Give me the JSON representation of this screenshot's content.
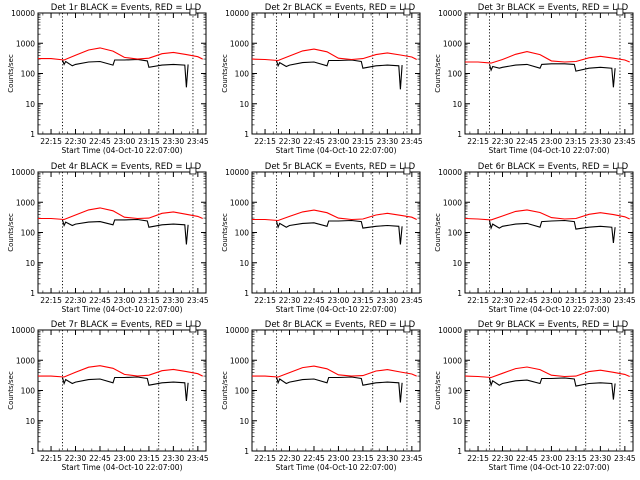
{
  "chart_data": [
    {
      "type": "line",
      "title": "Det 1r BLACK = Events, RED = LLD",
      "xlabel": "Start Time (04-Oct-10 22:07:00)",
      "ylabel": "Counts/sec",
      "yscale": "log",
      "ylim": [
        1,
        10000
      ],
      "ytick_labels": [
        "1",
        "10",
        "100",
        "1000",
        "10000"
      ],
      "xlim": [
        "22:07",
        "23:50"
      ],
      "xtick_labels": [
        "22:15",
        "22:30",
        "22:45",
        "23:00",
        "23:15",
        "23:30",
        "23:45"
      ],
      "vlines": [
        "22:22",
        "23:21",
        "23:42"
      ],
      "series": [
        {
          "name": "LLD",
          "color": "#ff0000",
          "x": [
            "22:07",
            "22:15",
            "22:23",
            "22:30",
            "22:38",
            "22:45",
            "22:53",
            "23:00",
            "23:08",
            "23:15",
            "23:23",
            "23:30",
            "23:38",
            "23:45",
            "23:48"
          ],
          "values": [
            310,
            310,
            280,
            400,
            600,
            700,
            550,
            340,
            300,
            320,
            450,
            500,
            420,
            360,
            300
          ]
        },
        {
          "name": "Events",
          "color": "#000000",
          "x": [
            "22:22",
            "22:23",
            "22:24",
            "22:28",
            "22:30",
            "22:38",
            "22:45",
            "22:53",
            "22:54",
            "23:00",
            "23:08",
            "23:14",
            "23:15",
            "23:23",
            "23:30",
            "23:37",
            "23:38",
            "23:39"
          ],
          "values": [
            280,
            200,
            250,
            180,
            200,
            240,
            250,
            190,
            280,
            280,
            290,
            260,
            160,
            190,
            200,
            190,
            35,
            200
          ]
        }
      ]
    },
    {
      "type": "line",
      "title": "Det 2r BLACK = Events, RED = LLD",
      "xlabel": "Start Time (04-Oct-10 22:07:00)",
      "ylabel": "Counts/sec",
      "yscale": "log",
      "ylim": [
        1,
        10000
      ],
      "ytick_labels": [
        "1",
        "10",
        "100",
        "1000",
        "10000"
      ],
      "xlim": [
        "22:07",
        "23:50"
      ],
      "xtick_labels": [
        "22:15",
        "22:30",
        "22:45",
        "23:00",
        "23:15",
        "23:30",
        "23:45"
      ],
      "vlines": [
        "22:22",
        "23:21",
        "23:42"
      ],
      "series": [
        {
          "name": "LLD",
          "color": "#ff0000",
          "x": [
            "22:07",
            "22:15",
            "22:23",
            "22:30",
            "22:38",
            "22:45",
            "22:53",
            "23:00",
            "23:08",
            "23:15",
            "23:23",
            "23:30",
            "23:38",
            "23:45",
            "23:48"
          ],
          "values": [
            300,
            290,
            270,
            380,
            560,
            640,
            520,
            320,
            290,
            310,
            420,
            480,
            410,
            350,
            290
          ]
        },
        {
          "name": "Events",
          "color": "#000000",
          "x": [
            "22:22",
            "22:23",
            "22:24",
            "22:28",
            "22:30",
            "22:38",
            "22:45",
            "22:53",
            "22:54",
            "23:00",
            "23:08",
            "23:14",
            "23:15",
            "23:23",
            "23:30",
            "23:37",
            "23:38",
            "23:39"
          ],
          "values": [
            270,
            180,
            230,
            170,
            190,
            230,
            240,
            180,
            270,
            270,
            280,
            250,
            150,
            180,
            190,
            180,
            30,
            190
          ]
        }
      ]
    },
    {
      "type": "line",
      "title": "Det 3r BLACK = Events, RED = LLD",
      "xlabel": "Start Time (04-Oct-10 22:07:00)",
      "ylabel": "Counts/sec",
      "yscale": "log",
      "ylim": [
        1,
        10000
      ],
      "ytick_labels": [
        "1",
        "10",
        "100",
        "1000",
        "10000"
      ],
      "xlim": [
        "22:07",
        "23:50"
      ],
      "xtick_labels": [
        "22:15",
        "22:30",
        "22:45",
        "23:00",
        "23:15",
        "23:30",
        "23:45"
      ],
      "vlines": [
        "22:22",
        "23:21",
        "23:42"
      ],
      "series": [
        {
          "name": "LLD",
          "color": "#ff0000",
          "x": [
            "22:07",
            "22:15",
            "22:23",
            "22:30",
            "22:38",
            "22:45",
            "22:53",
            "23:00",
            "23:08",
            "23:15",
            "23:23",
            "23:30",
            "23:38",
            "23:45",
            "23:48"
          ],
          "values": [
            240,
            240,
            220,
            290,
            430,
            530,
            420,
            260,
            240,
            250,
            330,
            370,
            320,
            280,
            240
          ]
        },
        {
          "name": "Events",
          "color": "#000000",
          "x": [
            "22:22",
            "22:23",
            "22:24",
            "22:28",
            "22:30",
            "22:38",
            "22:45",
            "22:53",
            "22:54",
            "23:00",
            "23:08",
            "23:14",
            "23:15",
            "23:23",
            "23:30",
            "23:37",
            "23:38",
            "23:39"
          ],
          "values": [
            200,
            130,
            170,
            150,
            160,
            190,
            200,
            150,
            200,
            210,
            210,
            200,
            120,
            150,
            160,
            150,
            35,
            150
          ]
        }
      ]
    },
    {
      "type": "line",
      "title": "Det 4r BLACK = Events, RED = LLD",
      "xlabel": "Start Time (04-Oct-10 22:07:00)",
      "ylabel": "Counts/sec",
      "yscale": "log",
      "ylim": [
        1,
        10000
      ],
      "ytick_labels": [
        "1",
        "10",
        "100",
        "1000",
        "10000"
      ],
      "xlim": [
        "22:07",
        "23:50"
      ],
      "xtick_labels": [
        "22:15",
        "22:30",
        "22:45",
        "23:00",
        "23:15",
        "23:30",
        "23:45"
      ],
      "vlines": [
        "22:22",
        "23:21",
        "23:42"
      ],
      "series": [
        {
          "name": "LLD",
          "color": "#ff0000",
          "x": [
            "22:07",
            "22:15",
            "22:23",
            "22:30",
            "22:38",
            "22:45",
            "22:53",
            "23:00",
            "23:08",
            "23:15",
            "23:23",
            "23:30",
            "23:38",
            "23:45",
            "23:48"
          ],
          "values": [
            290,
            290,
            270,
            380,
            560,
            650,
            520,
            320,
            290,
            300,
            430,
            480,
            400,
            340,
            290
          ]
        },
        {
          "name": "Events",
          "color": "#000000",
          "x": [
            "22:22",
            "22:23",
            "22:24",
            "22:28",
            "22:30",
            "22:38",
            "22:45",
            "22:53",
            "22:54",
            "23:00",
            "23:08",
            "23:14",
            "23:15",
            "23:23",
            "23:30",
            "23:37",
            "23:38",
            "23:39"
          ],
          "values": [
            260,
            170,
            220,
            170,
            190,
            220,
            230,
            180,
            260,
            260,
            270,
            240,
            150,
            180,
            190,
            180,
            40,
            180
          ]
        }
      ]
    },
    {
      "type": "line",
      "title": "Det 5r BLACK = Events, RED = LLD",
      "xlabel": "Start Time (04-Oct-10 22:07:00)",
      "ylabel": "Counts/sec",
      "yscale": "log",
      "ylim": [
        1,
        10000
      ],
      "ytick_labels": [
        "1",
        "10",
        "100",
        "1000",
        "10000"
      ],
      "xlim": [
        "22:07",
        "23:50"
      ],
      "xtick_labels": [
        "22:15",
        "22:30",
        "22:45",
        "23:00",
        "23:15",
        "23:30",
        "23:45"
      ],
      "vlines": [
        "22:22",
        "23:21",
        "23:42"
      ],
      "series": [
        {
          "name": "LLD",
          "color": "#ff0000",
          "x": [
            "22:07",
            "22:15",
            "22:23",
            "22:30",
            "22:38",
            "22:45",
            "22:53",
            "23:00",
            "23:08",
            "23:15",
            "23:23",
            "23:30",
            "23:38",
            "23:45",
            "23:48"
          ],
          "values": [
            270,
            270,
            250,
            340,
            480,
            550,
            450,
            300,
            270,
            280,
            380,
            430,
            370,
            320,
            270
          ]
        },
        {
          "name": "Events",
          "color": "#000000",
          "x": [
            "22:22",
            "22:23",
            "22:24",
            "22:28",
            "22:30",
            "22:38",
            "22:45",
            "22:53",
            "22:54",
            "23:00",
            "23:08",
            "23:14",
            "23:15",
            "23:23",
            "23:30",
            "23:37",
            "23:38",
            "23:39"
          ],
          "values": [
            240,
            150,
            200,
            150,
            170,
            200,
            210,
            160,
            240,
            240,
            250,
            230,
            140,
            160,
            170,
            160,
            40,
            160
          ]
        }
      ]
    },
    {
      "type": "line",
      "title": "Det 6r BLACK = Events, RED = LLD",
      "xlabel": "Start Time (04-Oct-10 22:07:00)",
      "ylabel": "Counts/sec",
      "yscale": "log",
      "ylim": [
        1,
        10000
      ],
      "ytick_labels": [
        "1",
        "10",
        "100",
        "1000",
        "10000"
      ],
      "xlim": [
        "22:07",
        "23:50"
      ],
      "xtick_labels": [
        "22:15",
        "22:30",
        "22:45",
        "23:00",
        "23:15",
        "23:30",
        "23:45"
      ],
      "vlines": [
        "22:22",
        "23:21",
        "23:42"
      ],
      "series": [
        {
          "name": "LLD",
          "color": "#ff0000",
          "x": [
            "22:07",
            "22:15",
            "22:23",
            "22:30",
            "22:38",
            "22:45",
            "22:53",
            "23:00",
            "23:08",
            "23:15",
            "23:23",
            "23:30",
            "23:38",
            "23:45",
            "23:48"
          ],
          "values": [
            290,
            280,
            260,
            350,
            500,
            560,
            460,
            310,
            280,
            290,
            400,
            450,
            390,
            330,
            280
          ]
        },
        {
          "name": "Events",
          "color": "#000000",
          "x": [
            "22:22",
            "22:23",
            "22:24",
            "22:28",
            "22:30",
            "22:38",
            "22:45",
            "22:53",
            "22:54",
            "23:00",
            "23:08",
            "23:14",
            "23:15",
            "23:23",
            "23:30",
            "23:37",
            "23:38",
            "23:39"
          ],
          "values": [
            250,
            140,
            190,
            140,
            160,
            190,
            200,
            150,
            230,
            240,
            250,
            230,
            130,
            150,
            160,
            150,
            45,
            150
          ]
        }
      ]
    },
    {
      "type": "line",
      "title": "Det 7r BLACK = Events, RED = LLD",
      "xlabel": "Start Time (04-Oct-10 22:07:00)",
      "ylabel": "Counts/sec",
      "yscale": "log",
      "ylim": [
        1,
        10000
      ],
      "ytick_labels": [
        "1",
        "10",
        "100",
        "1000",
        "10000"
      ],
      "xlim": [
        "22:07",
        "23:50"
      ],
      "xtick_labels": [
        "22:15",
        "22:30",
        "22:45",
        "23:00",
        "23:15",
        "23:30",
        "23:45"
      ],
      "vlines": [
        "22:22",
        "23:21",
        "23:42"
      ],
      "series": [
        {
          "name": "LLD",
          "color": "#ff0000",
          "x": [
            "22:07",
            "22:15",
            "22:23",
            "22:30",
            "22:38",
            "22:45",
            "22:53",
            "23:00",
            "23:08",
            "23:15",
            "23:23",
            "23:30",
            "23:38",
            "23:45",
            "23:48"
          ],
          "values": [
            300,
            300,
            280,
            400,
            590,
            660,
            540,
            340,
            300,
            320,
            450,
            500,
            420,
            360,
            300
          ]
        },
        {
          "name": "Events",
          "color": "#000000",
          "x": [
            "22:22",
            "22:23",
            "22:24",
            "22:28",
            "22:30",
            "22:38",
            "22:45",
            "22:53",
            "22:54",
            "23:00",
            "23:08",
            "23:14",
            "23:15",
            "23:23",
            "23:30",
            "23:37",
            "23:38",
            "23:39"
          ],
          "values": [
            270,
            170,
            230,
            170,
            190,
            230,
            240,
            180,
            270,
            270,
            280,
            250,
            150,
            180,
            190,
            180,
            45,
            180
          ]
        }
      ]
    },
    {
      "type": "line",
      "title": "Det 8r BLACK = Events, RED = LLD",
      "xlabel": "Start Time (04-Oct-10 22:07:00)",
      "ylabel": "Counts/sec",
      "yscale": "log",
      "ylim": [
        1,
        10000
      ],
      "ytick_labels": [
        "1",
        "10",
        "100",
        "1000",
        "10000"
      ],
      "xlim": [
        "22:07",
        "23:50"
      ],
      "xtick_labels": [
        "22:15",
        "22:30",
        "22:45",
        "23:00",
        "23:15",
        "23:30",
        "23:45"
      ],
      "vlines": [
        "22:22",
        "23:21",
        "23:42"
      ],
      "series": [
        {
          "name": "LLD",
          "color": "#ff0000",
          "x": [
            "22:07",
            "22:15",
            "22:23",
            "22:30",
            "22:38",
            "22:45",
            "22:53",
            "23:00",
            "23:08",
            "23:15",
            "23:23",
            "23:30",
            "23:38",
            "23:45",
            "23:48"
          ],
          "values": [
            300,
            300,
            280,
            390,
            570,
            640,
            520,
            330,
            300,
            310,
            440,
            490,
            410,
            350,
            300
          ]
        },
        {
          "name": "Events",
          "color": "#000000",
          "x": [
            "22:22",
            "22:23",
            "22:24",
            "22:28",
            "22:30",
            "22:38",
            "22:45",
            "22:53",
            "22:54",
            "23:00",
            "23:08",
            "23:14",
            "23:15",
            "23:23",
            "23:30",
            "23:37",
            "23:38",
            "23:39"
          ],
          "values": [
            280,
            180,
            240,
            170,
            190,
            230,
            240,
            180,
            270,
            270,
            280,
            250,
            150,
            180,
            190,
            180,
            40,
            180
          ]
        }
      ]
    },
    {
      "type": "line",
      "title": "Det 9r BLACK = Events, RED = LLD",
      "xlabel": "Start Time (04-Oct-10 22:07:00)",
      "ylabel": "Counts/sec",
      "yscale": "log",
      "ylim": [
        1,
        10000
      ],
      "ytick_labels": [
        "1",
        "10",
        "100",
        "1000",
        "10000"
      ],
      "xlim": [
        "22:07",
        "23:50"
      ],
      "xtick_labels": [
        "22:15",
        "22:30",
        "22:45",
        "23:00",
        "23:15",
        "23:30",
        "23:45"
      ],
      "vlines": [
        "22:22",
        "23:21",
        "23:42"
      ],
      "series": [
        {
          "name": "LLD",
          "color": "#ff0000",
          "x": [
            "22:07",
            "22:15",
            "22:23",
            "22:30",
            "22:38",
            "22:45",
            "22:53",
            "23:00",
            "23:08",
            "23:15",
            "23:23",
            "23:30",
            "23:38",
            "23:45",
            "23:48"
          ],
          "values": [
            300,
            290,
            270,
            370,
            530,
            600,
            490,
            320,
            290,
            300,
            420,
            470,
            400,
            340,
            290
          ]
        },
        {
          "name": "Events",
          "color": "#000000",
          "x": [
            "22:22",
            "22:23",
            "22:24",
            "22:28",
            "22:30",
            "22:38",
            "22:45",
            "22:53",
            "22:54",
            "23:00",
            "23:08",
            "23:14",
            "23:15",
            "23:23",
            "23:30",
            "23:37",
            "23:38",
            "23:39"
          ],
          "values": [
            260,
            150,
            210,
            150,
            170,
            210,
            220,
            170,
            250,
            250,
            260,
            240,
            140,
            170,
            180,
            170,
            50,
            170
          ]
        }
      ]
    }
  ]
}
